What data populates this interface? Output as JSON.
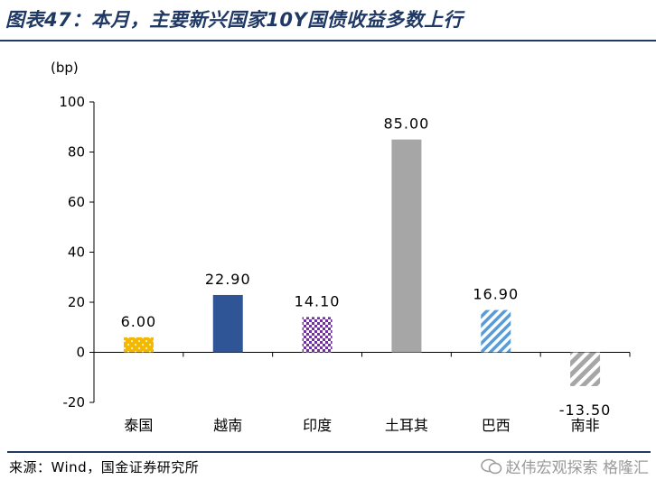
{
  "title": "图表47：本月，主要新兴国家10Y国债收益多数上行",
  "source": "来源：Wind，国金证券研究所",
  "watermark": "赵伟宏观探索 格隆汇",
  "colors": {
    "title": "#1f3864",
    "thailand": "#f5b800",
    "vietnam": "#2f5597",
    "india": "#7030a0",
    "turkey": "#a6a6a6",
    "brazil": "#5b9bd5",
    "south_africa": "#a6a6a6"
  },
  "chart_data": {
    "type": "bar",
    "categories": [
      "泰国",
      "越南",
      "印度",
      "土耳其",
      "巴西",
      "南非"
    ],
    "values": [
      6.0,
      22.9,
      14.1,
      85.0,
      16.9,
      -13.5
    ],
    "value_labels": [
      "6.00",
      "22.90",
      "14.10",
      "85.00",
      "16.90",
      "-13.50"
    ],
    "ylabel": "(bp)",
    "ylim": [
      -20,
      100
    ],
    "yticks": [
      -20,
      0,
      20,
      40,
      60,
      80,
      100
    ],
    "ytick_labels": [
      "-20",
      "0",
      "20",
      "40",
      "60",
      "80",
      "100"
    ],
    "fills": [
      "dotted",
      "solid",
      "checker",
      "solid",
      "diagonal-stripes",
      "diagonal-stripes"
    ],
    "grid": false,
    "legend": "none"
  }
}
